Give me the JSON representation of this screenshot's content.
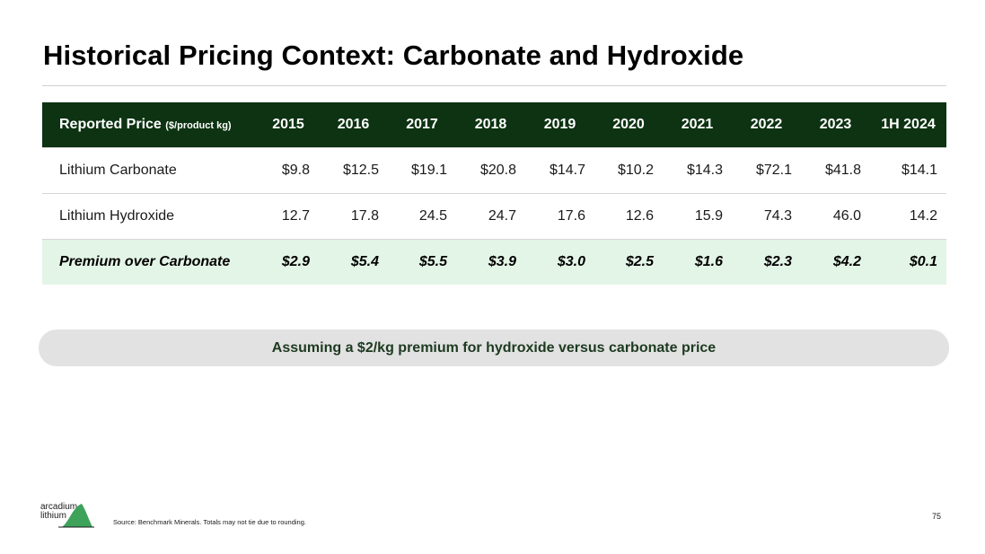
{
  "slide": {
    "title": "Historical Pricing Context: Carbonate and Hydroxide",
    "page_number": "75"
  },
  "table": {
    "header_label": "Reported Price",
    "header_unit": "($/product kg)",
    "years": [
      "2015",
      "2016",
      "2017",
      "2018",
      "2019",
      "2020",
      "2021",
      "2022",
      "2023",
      "1H 2024"
    ],
    "rows": [
      {
        "label": "Lithium Carbonate",
        "values": [
          "$9.8",
          "$12.5",
          "$19.1",
          "$20.8",
          "$14.7",
          "$10.2",
          "$14.3",
          "$72.1",
          "$41.8",
          "$14.1"
        ]
      },
      {
        "label": "Lithium Hydroxide",
        "values": [
          "12.7",
          "17.8",
          "24.5",
          "24.7",
          "17.6",
          "12.6",
          "15.9",
          "74.3",
          "46.0",
          "14.2"
        ]
      },
      {
        "label": "Premium over Carbonate",
        "values": [
          "$2.9",
          "$5.4",
          "$5.5",
          "$3.9",
          "$3.0",
          "$2.5",
          "$1.6",
          "$2.3",
          "$4.2",
          "$0.1"
        ]
      }
    ]
  },
  "assumption_text": "Assuming a $2/kg premium for hydroxide versus carbonate price",
  "footer": {
    "logo_text_line1": "arcadium",
    "logo_text_line2": "lithium",
    "source": "Source: Benchmark Minerals. Totals may not tie due to rounding."
  },
  "colors": {
    "header_bg": "#0d3312",
    "premium_bg": "#e3f5e6",
    "assumption_bg": "#e2e2e2",
    "assumption_text": "#1d3a20",
    "logo_green": "#3da25a"
  }
}
